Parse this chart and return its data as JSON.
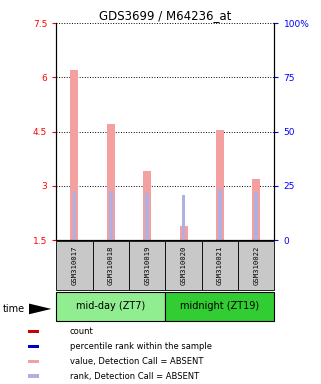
{
  "title": "GDS3699 / M64236_at",
  "samples": [
    "GSM310017",
    "GSM310018",
    "GSM310019",
    "GSM310020",
    "GSM310021",
    "GSM310022"
  ],
  "value_bars": [
    6.2,
    4.7,
    3.4,
    1.9,
    4.55,
    3.2
  ],
  "rank_bars": [
    2.85,
    2.85,
    2.8,
    2.75,
    2.9,
    2.8
  ],
  "value_bar_color": "#f4a0a0",
  "rank_bar_color": "#b0b0e0",
  "ylim_left": [
    1.5,
    7.5
  ],
  "ylim_right": [
    0,
    100
  ],
  "yticks_left": [
    1.5,
    3.0,
    4.5,
    6.0,
    7.5
  ],
  "ytick_labels_left": [
    "1.5",
    "3",
    "4.5",
    "6",
    "7.5"
  ],
  "yticks_right": [
    0,
    25,
    50,
    75,
    100
  ],
  "ytick_labels_right": [
    "0",
    "25",
    "50",
    "75",
    "100%"
  ],
  "group1_color": "#90EE90",
  "group2_color": "#32CD32",
  "sample_bg_color": "#c8c8c8",
  "group1_label": "mid-day (ZT7)",
  "group2_label": "midnight (ZT19)",
  "time_label": "time",
  "legend_items": [
    {
      "label": "count",
      "color": "#cc0000"
    },
    {
      "label": "percentile rank within the sample",
      "color": "#0000cc"
    },
    {
      "label": "value, Detection Call = ABSENT",
      "color": "#f4a0a0"
    },
    {
      "label": "rank, Detection Call = ABSENT",
      "color": "#b0b0e0"
    }
  ]
}
